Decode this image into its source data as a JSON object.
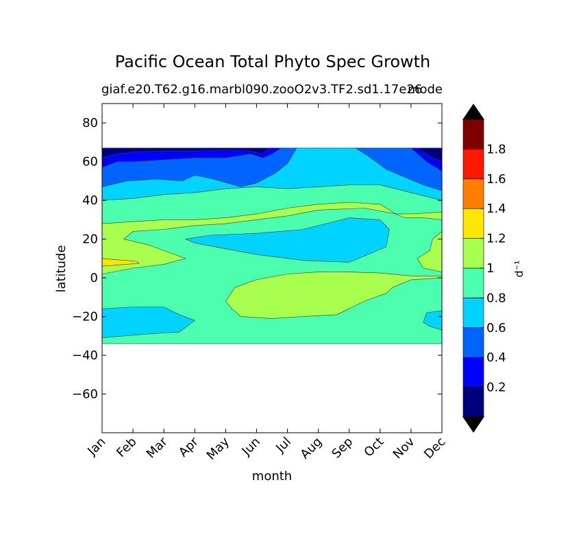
{
  "chart_data": {
    "type": "contourf",
    "title": "Pacific Ocean Total Phyto Spec Growth",
    "subtitle_left": "giaf.e20.T62.g16.marbl090.zooO2v3.TF2.sd1.17e26",
    "subtitle_right": "mode",
    "xlabel": "month",
    "ylabel": "latitude",
    "colorbar_label": "d⁻¹",
    "x_ticks": [
      "Jan",
      "Feb",
      "Mar",
      "Apr",
      "May",
      "Jun",
      "Jul",
      "Aug",
      "Sep",
      "Oct",
      "Nov",
      "Dec"
    ],
    "ylim": [
      -80,
      90
    ],
    "y_ticks": [
      -60,
      -40,
      -20,
      0,
      20,
      40,
      60,
      80
    ],
    "y_tick_labels": [
      "−60",
      "−40",
      "−20",
      "0",
      "20",
      "40",
      "60",
      "80"
    ],
    "data_lat_range": [
      -34,
      67
    ],
    "levels": [
      0,
      0.2,
      0.4,
      0.6,
      0.8,
      1.0,
      1.2,
      1.4,
      1.6,
      1.8,
      2.0
    ],
    "colorbar_tick_values": [
      0.2,
      0.4,
      0.6,
      0.8,
      1.0,
      1.2,
      1.4,
      1.6,
      1.8
    ],
    "colorbar_tick_labels": [
      "0.2",
      "0.4",
      "0.6",
      "0.8",
      "1",
      "1.2",
      "1.4",
      "1.6",
      "1.8"
    ],
    "colors": [
      "#00007f",
      "#0000ff",
      "#0064ff",
      "#00d3ff",
      "#4cffae",
      "#a8ff4d",
      "#ffe600",
      "#ff7e00",
      "#ff1800",
      "#7f0000"
    ],
    "extend_under_color": "#000000",
    "extend_over_color": "#000000",
    "regions": [
      {
        "name": "southern-band-0.8-1.0",
        "value_class": 4,
        "points": [
          [
            0,
            -34
          ],
          [
            11,
            -34
          ],
          [
            11,
            67
          ],
          [
            0,
            67
          ]
        ]
      },
      {
        "name": "north-band-0.6-0.8",
        "value_class": 3,
        "points": [
          [
            0,
            40
          ],
          [
            1,
            41
          ],
          [
            2,
            43
          ],
          [
            3,
            44
          ],
          [
            4,
            46
          ],
          [
            5,
            47
          ],
          [
            6,
            46
          ],
          [
            7,
            47
          ],
          [
            8,
            48
          ],
          [
            9,
            48
          ],
          [
            10,
            44
          ],
          [
            11,
            40
          ],
          [
            11,
            67
          ],
          [
            0,
            67
          ]
        ]
      },
      {
        "name": "north-band-0.4-0.6",
        "value_class": 2,
        "points": [
          [
            0,
            47
          ],
          [
            0.8,
            50
          ],
          [
            1.8,
            51
          ],
          [
            2.6,
            50
          ],
          [
            3,
            53
          ],
          [
            3.6,
            51
          ],
          [
            4.5,
            47
          ],
          [
            5,
            49
          ],
          [
            5.6,
            54
          ],
          [
            6,
            59
          ],
          [
            6.3,
            67
          ],
          [
            0,
            67
          ]
        ]
      },
      {
        "name": "north-band-0.4-0.6-east",
        "value_class": 2,
        "points": [
          [
            8.2,
            67
          ],
          [
            8.6,
            63
          ],
          [
            9.2,
            56
          ],
          [
            9.8,
            52
          ],
          [
            10.4,
            48
          ],
          [
            11,
            45
          ],
          [
            11,
            67
          ]
        ]
      },
      {
        "name": "north-band-0.2-0.4",
        "value_class": 1,
        "points": [
          [
            0,
            57
          ],
          [
            0.5,
            60
          ],
          [
            1,
            60
          ],
          [
            2,
            61
          ],
          [
            3,
            62
          ],
          [
            4,
            62
          ],
          [
            4.8,
            64
          ],
          [
            5.2,
            62
          ],
          [
            5.5,
            64
          ],
          [
            5.8,
            67
          ],
          [
            0,
            67
          ]
        ]
      },
      {
        "name": "north-band-0.2-0.4-east",
        "value_class": 1,
        "points": [
          [
            10,
            67
          ],
          [
            10.5,
            60
          ],
          [
            11,
            55
          ],
          [
            11,
            67
          ]
        ]
      },
      {
        "name": "north-band-0-0.2",
        "value_class": 0,
        "points": [
          [
            0,
            62
          ],
          [
            0.5,
            64
          ],
          [
            1,
            65
          ],
          [
            2,
            65.5
          ],
          [
            3,
            65.5
          ],
          [
            4,
            66
          ],
          [
            4.8,
            65.5
          ],
          [
            5.2,
            64
          ],
          [
            5.4,
            67
          ],
          [
            0,
            67
          ]
        ]
      },
      {
        "name": "north-band-0-0.2-east",
        "value_class": 0,
        "points": [
          [
            10.2,
            67
          ],
          [
            10.7,
            62
          ],
          [
            11,
            60
          ],
          [
            11,
            67
          ]
        ]
      },
      {
        "name": "subtropical-north-1.0-1.2",
        "value_class": 5,
        "points": [
          [
            0,
            28
          ],
          [
            1,
            29
          ],
          [
            2,
            30
          ],
          [
            3,
            30
          ],
          [
            4,
            31
          ],
          [
            5,
            33
          ],
          [
            6,
            36
          ],
          [
            7,
            38
          ],
          [
            8,
            39
          ],
          [
            9,
            38
          ],
          [
            9.5,
            33
          ],
          [
            9.8,
            31
          ],
          [
            10.4,
            31
          ],
          [
            11,
            30
          ],
          [
            11,
            34
          ],
          [
            10,
            33
          ],
          [
            9.5,
            33
          ],
          [
            8.5,
            36
          ],
          [
            7,
            35
          ],
          [
            6,
            32
          ],
          [
            5,
            30
          ],
          [
            4,
            28
          ],
          [
            3,
            27
          ],
          [
            2,
            25
          ],
          [
            1,
            24
          ],
          [
            0.7,
            20
          ],
          [
            1.5,
            17
          ],
          [
            2.7,
            10
          ],
          [
            2,
            7
          ],
          [
            1,
            5
          ],
          [
            0,
            2
          ]
        ]
      },
      {
        "name": "east-patch-1.0-1.2",
        "value_class": 5,
        "points": [
          [
            11,
            24
          ],
          [
            10.7,
            20
          ],
          [
            10.6,
            14
          ],
          [
            10.2,
            10
          ],
          [
            10.4,
            5
          ],
          [
            11,
            3
          ]
        ]
      },
      {
        "name": "equator-patch-1.0-1.2",
        "value_class": 5,
        "points": [
          [
            4,
            -12
          ],
          [
            4.3,
            -5
          ],
          [
            5,
            -1
          ],
          [
            6,
            2
          ],
          [
            7,
            3
          ],
          [
            8,
            3
          ],
          [
            9,
            2.5
          ],
          [
            10,
            1
          ],
          [
            11,
            1
          ],
          [
            11,
            0
          ],
          [
            10,
            -1
          ],
          [
            9.4,
            -5
          ],
          [
            9.2,
            -8
          ],
          [
            8.5,
            -12
          ],
          [
            7.6,
            -19
          ],
          [
            6.5,
            -20
          ],
          [
            5.5,
            -21
          ],
          [
            4.5,
            -20
          ],
          [
            4.2,
            -16
          ]
        ]
      },
      {
        "name": "north-pool-0.6-0.8",
        "value_class": 3,
        "points": [
          [
            2.7,
            20
          ],
          [
            3.5,
            22
          ],
          [
            5,
            23
          ],
          [
            6.5,
            25
          ],
          [
            8,
            31
          ],
          [
            9,
            30
          ],
          [
            9.3,
            25
          ],
          [
            9.2,
            16
          ],
          [
            8,
            8
          ],
          [
            6.5,
            9
          ],
          [
            5,
            12
          ],
          [
            4,
            15
          ],
          [
            3,
            18
          ]
        ]
      },
      {
        "name": "jan-maximum-1.2-1.4",
        "value_class": 6,
        "points": [
          [
            0,
            10
          ],
          [
            1.1,
            8.5
          ],
          [
            1.2,
            7.5
          ],
          [
            0,
            6
          ]
        ]
      },
      {
        "name": "south-pool-0.6-0.8",
        "value_class": 3,
        "points": [
          [
            0,
            -16
          ],
          [
            1,
            -15
          ],
          [
            2,
            -15
          ],
          [
            2.5,
            -19
          ],
          [
            3,
            -22
          ],
          [
            2.5,
            -28
          ],
          [
            1.5,
            -29
          ],
          [
            0,
            -31
          ]
        ]
      },
      {
        "name": "se-patch-0.6-0.8",
        "value_class": 3,
        "points": [
          [
            11,
            -17
          ],
          [
            10.5,
            -18
          ],
          [
            10.4,
            -23
          ],
          [
            10.6,
            -25
          ],
          [
            11,
            -27
          ]
        ]
      }
    ]
  }
}
